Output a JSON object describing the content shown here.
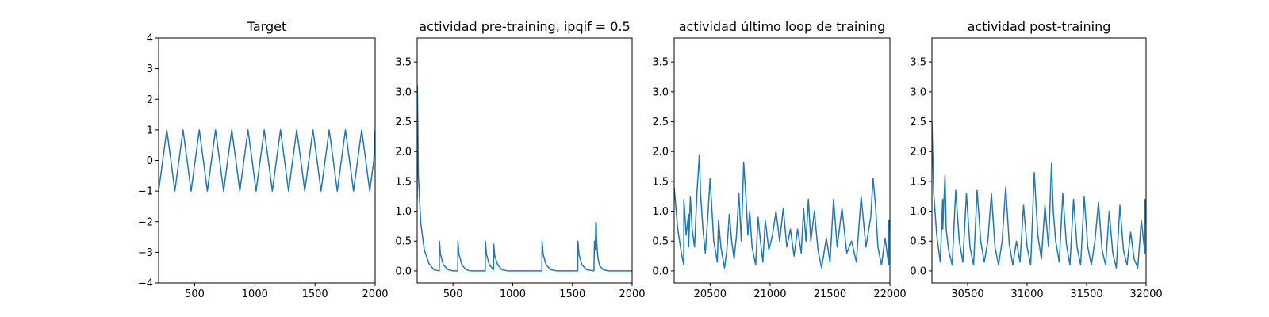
{
  "chart_data": [
    {
      "type": "line",
      "title": "Target",
      "xlim": [
        200,
        2000
      ],
      "ylim": [
        -4,
        4
      ],
      "xticks": [
        500,
        1000,
        1500,
        2000
      ],
      "yticks": [
        -4,
        -3,
        -2,
        -1,
        0,
        1,
        2,
        3,
        4
      ],
      "color": "#1f77b4",
      "series": [
        {
          "kind": "sinusoid",
          "amplitude": 1.0,
          "period": 135,
          "phase_start": -1.0
        }
      ],
      "x": [
        200,
        234,
        268,
        302,
        335,
        369,
        403,
        437,
        470,
        504,
        538,
        572,
        605,
        639,
        673,
        707,
        740,
        774,
        808,
        842,
        875,
        909,
        943,
        977,
        1010,
        1044,
        1078,
        1112,
        1145,
        1179,
        1213,
        1247,
        1280,
        1314,
        1348,
        1382,
        1415,
        1449,
        1483,
        1517,
        1550,
        1584,
        1618,
        1652,
        1685,
        1719,
        1753,
        1787,
        1820,
        1854,
        1888,
        1922,
        1955,
        1989,
        2000
      ],
      "y": [
        -1.0,
        0.0,
        1.0,
        0.0,
        -1.0,
        0.0,
        1.0,
        0.0,
        -1.0,
        0.0,
        1.0,
        0.0,
        -1.0,
        0.0,
        1.0,
        0.0,
        -1.0,
        0.0,
        1.0,
        0.0,
        -1.0,
        0.0,
        1.0,
        0.0,
        -1.0,
        0.0,
        1.0,
        0.0,
        -1.0,
        0.0,
        1.0,
        0.0,
        -1.0,
        0.0,
        1.0,
        0.0,
        -1.0,
        0.0,
        1.0,
        0.0,
        -1.0,
        0.0,
        1.0,
        0.0,
        -1.0,
        0.0,
        1.0,
        0.0,
        -1.0,
        0.0,
        1.0,
        0.0,
        -1.0,
        0.0,
        1.0
      ]
    },
    {
      "type": "line",
      "title": "actividad pre-training, ipqif = 0.5",
      "xlim": [
        200,
        2000
      ],
      "ylim": [
        -0.2,
        3.9
      ],
      "xticks": [
        500,
        1000,
        1500,
        2000
      ],
      "yticks": [
        0.0,
        0.5,
        1.0,
        1.5,
        2.0,
        2.5,
        3.0,
        3.5
      ],
      "color": "#1f77b4",
      "x": [
        200,
        202,
        210,
        230,
        260,
        300,
        340,
        385,
        386,
        395,
        420,
        460,
        500,
        540,
        541,
        550,
        575,
        610,
        650,
        770,
        771,
        780,
        805,
        840,
        841,
        850,
        875,
        910,
        960,
        1245,
        1246,
        1255,
        1280,
        1320,
        1370,
        1545,
        1546,
        1555,
        1580,
        1620,
        1680,
        1685,
        1692,
        1696,
        1698,
        1700,
        1702,
        1708,
        1715,
        1730,
        1760,
        1800,
        2000
      ],
      "y": [
        1.2,
        3.1,
        1.6,
        0.8,
        0.35,
        0.12,
        0.02,
        0.0,
        0.5,
        0.28,
        0.1,
        0.02,
        0.0,
        0.0,
        0.5,
        0.28,
        0.1,
        0.02,
        0.0,
        0.0,
        0.5,
        0.28,
        0.1,
        0.02,
        0.45,
        0.25,
        0.1,
        0.02,
        0.0,
        0.0,
        0.5,
        0.28,
        0.1,
        0.02,
        0.0,
        0.0,
        0.5,
        0.28,
        0.1,
        0.02,
        0.0,
        0.5,
        0.35,
        0.82,
        0.6,
        0.8,
        0.55,
        0.35,
        0.2,
        0.08,
        0.02,
        0.0,
        0.0
      ]
    },
    {
      "type": "line",
      "title": "actividad último loop de training",
      "xlim": [
        20200,
        22000
      ],
      "ylim": [
        -0.2,
        3.9
      ],
      "xticks": [
        20500,
        21000,
        21500,
        22000
      ],
      "yticks": [
        0.0,
        0.5,
        1.0,
        1.5,
        2.0,
        2.5,
        3.0,
        3.5
      ],
      "color": "#1f77b4",
      "x": [
        20200,
        20230,
        20260,
        20280,
        20281,
        20300,
        20320,
        20321,
        20335,
        20350,
        20370,
        20390,
        20410,
        20420,
        20440,
        20460,
        20480,
        20500,
        20530,
        20560,
        20570,
        20590,
        20620,
        20640,
        20660,
        20680,
        20700,
        20720,
        20740,
        20760,
        20780,
        20800,
        20815,
        20830,
        20850,
        20880,
        20900,
        20920,
        20940,
        20960,
        20990,
        21020,
        21050,
        21080,
        21110,
        21140,
        21170,
        21200,
        21230,
        21260,
        21280,
        21300,
        21320,
        21340,
        21370,
        21400,
        21430,
        21470,
        21500,
        21530,
        21560,
        21600,
        21640,
        21680,
        21720,
        21760,
        21800,
        21840,
        21860,
        21880,
        21900,
        21930,
        21960,
        21990,
        21991,
        22000
      ],
      "y": [
        1.4,
        0.7,
        0.3,
        0.1,
        1.2,
        0.6,
        0.95,
        0.4,
        1.25,
        0.7,
        0.4,
        1.3,
        1.94,
        1.3,
        0.7,
        0.3,
        0.9,
        1.55,
        0.5,
        0.15,
        0.85,
        0.4,
        0.05,
        0.35,
        0.95,
        0.5,
        0.2,
        0.6,
        1.3,
        0.5,
        1.82,
        1.2,
        0.6,
        1.0,
        0.4,
        0.1,
        0.9,
        0.5,
        0.15,
        0.85,
        0.35,
        0.6,
        1.0,
        0.5,
        1.05,
        0.4,
        0.7,
        0.25,
        0.7,
        0.3,
        1.05,
        0.5,
        1.2,
        0.5,
        1.0,
        0.35,
        0.05,
        0.55,
        0.15,
        1.2,
        0.4,
        1.05,
        0.3,
        0.5,
        0.15,
        1.25,
        0.4,
        0.9,
        1.55,
        1.1,
        0.4,
        0.1,
        0.55,
        0.1,
        0.85,
        0.7
      ]
    },
    {
      "type": "line",
      "title": "actividad post-training",
      "xlim": [
        30200,
        32000
      ],
      "ylim": [
        -0.2,
        3.9
      ],
      "xticks": [
        30500,
        31000,
        31500,
        32000
      ],
      "yticks": [
        0.0,
        0.5,
        1.0,
        1.5,
        2.0,
        2.5,
        3.0,
        3.5
      ],
      "color": "#1f77b4",
      "x": [
        30200,
        30215,
        30240,
        30270,
        30290,
        30291,
        30310,
        30320,
        30340,
        30370,
        30400,
        30430,
        30460,
        30490,
        30520,
        30550,
        30580,
        30610,
        30640,
        30670,
        30700,
        30730,
        30760,
        30790,
        30820,
        30850,
        30880,
        30910,
        30940,
        30970,
        31000,
        31030,
        31060,
        31090,
        31120,
        31150,
        31180,
        31205,
        31220,
        31240,
        31270,
        31300,
        31330,
        31360,
        31390,
        31420,
        31450,
        31480,
        31510,
        31540,
        31570,
        31600,
        31630,
        31660,
        31690,
        31720,
        31750,
        31780,
        31810,
        31840,
        31870,
        31900,
        31930,
        31960,
        31990,
        31991,
        32000
      ],
      "y": [
        2.5,
        1.3,
        0.6,
        0.15,
        1.2,
        0.7,
        1.6,
        0.7,
        0.35,
        0.1,
        1.35,
        0.5,
        0.15,
        1.3,
        0.4,
        0.1,
        1.35,
        0.5,
        0.15,
        0.5,
        1.3,
        0.4,
        0.1,
        0.5,
        1.4,
        0.45,
        0.1,
        0.5,
        0.15,
        1.1,
        0.4,
        0.1,
        1.65,
        0.6,
        0.2,
        1.1,
        0.4,
        1.8,
        1.0,
        0.5,
        0.15,
        1.3,
        0.45,
        0.1,
        1.2,
        0.4,
        0.1,
        1.25,
        0.4,
        0.1,
        0.5,
        1.15,
        0.35,
        0.1,
        1.0,
        0.3,
        0.05,
        1.1,
        0.35,
        0.1,
        0.65,
        0.2,
        0.05,
        0.85,
        0.3,
        1.2,
        0.8
      ]
    }
  ]
}
